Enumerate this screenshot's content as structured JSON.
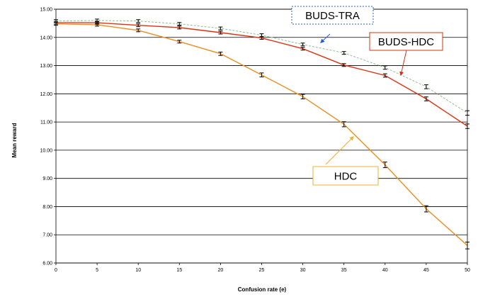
{
  "chart_data": {
    "type": "line",
    "xlabel": "Confusion rate (e)",
    "ylabel": "Mean reward",
    "x": [
      0,
      5,
      10,
      15,
      20,
      25,
      30,
      35,
      40,
      45,
      50
    ],
    "xlim": [
      0,
      50
    ],
    "ylim": [
      6.0,
      15.0
    ],
    "y_ticks": [
      "6.00",
      "7.00",
      "8.00",
      "9.00",
      "10.00",
      "11.00",
      "12.00",
      "13.00",
      "14.00",
      "15.00"
    ],
    "x_ticks": [
      "0",
      "5",
      "10",
      "15",
      "20",
      "25",
      "30",
      "35",
      "40",
      "45",
      "50"
    ],
    "grid": "horizontal",
    "error_bars": true,
    "series": [
      {
        "name": "BUDS-TRA",
        "color": "#8fbf8f",
        "dash": true,
        "values": [
          14.58,
          14.6,
          14.58,
          14.48,
          14.32,
          14.08,
          13.75,
          13.45,
          12.93,
          12.25,
          11.32
        ],
        "errors": [
          0.05,
          0.05,
          0.05,
          0.05,
          0.05,
          0.05,
          0.05,
          0.05,
          0.06,
          0.07,
          0.08
        ]
      },
      {
        "name": "BUDS-HDC",
        "color": "#e03010",
        "dash": false,
        "values": [
          14.52,
          14.52,
          14.43,
          14.35,
          14.17,
          13.98,
          13.6,
          13.02,
          12.65,
          11.82,
          10.85
        ],
        "errors": [
          0.05,
          0.05,
          0.05,
          0.05,
          0.05,
          0.05,
          0.05,
          0.05,
          0.06,
          0.07,
          0.08
        ]
      },
      {
        "name": "HDC",
        "color": "#f08c1c",
        "dash": false,
        "values": [
          14.48,
          14.45,
          14.25,
          13.85,
          13.42,
          12.67,
          11.9,
          10.92,
          9.48,
          7.92,
          6.62
        ],
        "errors": [
          0.05,
          0.05,
          0.05,
          0.05,
          0.06,
          0.07,
          0.08,
          0.09,
          0.1,
          0.11,
          0.12
        ]
      }
    ],
    "annotations": [
      {
        "text": "BUDS-TRA",
        "series": "BUDS-TRA",
        "border": "dashed",
        "border_color": "#2a5bd7",
        "arrow_color": "#2a5bd7"
      },
      {
        "text": "BUDS-HDC",
        "series": "BUDS-HDC",
        "border": "solid",
        "border_color": "#e03010",
        "arrow_color": "#e03010"
      },
      {
        "text": "HDC",
        "series": "HDC",
        "border": "solid",
        "border_color": "#f0b030",
        "arrow_color": "#f0b030"
      }
    ]
  }
}
